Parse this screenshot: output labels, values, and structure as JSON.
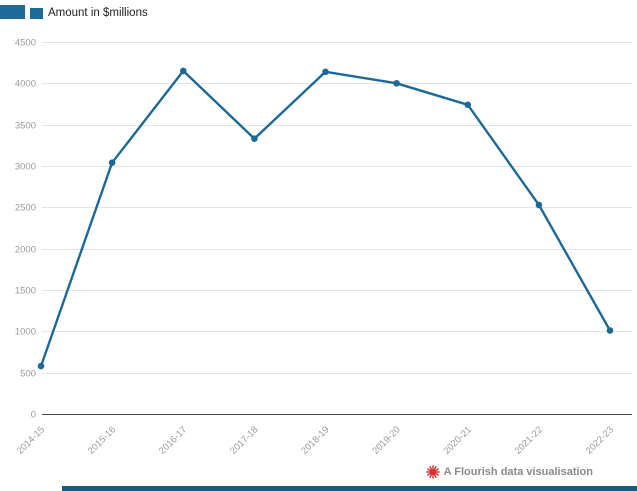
{
  "legend": {
    "label": "Amount in $millions",
    "swatch_color": "#1d6996"
  },
  "footer": {
    "credit": "A Flourish data visualisation",
    "logo_color": "#d92a2a"
  },
  "page": {
    "bottom_bar_color": "#1a5a7d",
    "corner_block_color": "#1d6996"
  },
  "chart_data": {
    "type": "line",
    "title": "",
    "xlabel": "",
    "ylabel": "",
    "categories": [
      "2014-15",
      "2015-16",
      "2016-17",
      "2017-18",
      "2018-19",
      "2019-20",
      "2020-21",
      "2021-22",
      "2022-23"
    ],
    "series": [
      {
        "name": "Amount in $millions",
        "values": [
          580,
          3040,
          4150,
          3330,
          4140,
          4000,
          3740,
          2530,
          1010
        ]
      }
    ],
    "ylim": [
      0,
      4500
    ],
    "yticks": [
      0,
      500,
      1000,
      1500,
      2000,
      2500,
      3000,
      3500,
      4000,
      4500
    ],
    "grid": true,
    "legend_position": "top-left",
    "line_color": "#1d6996",
    "marker": "circle",
    "grid_color": "#e4e4e4",
    "axis_color": "#444444",
    "tick_label_color": "#9a9a9a"
  }
}
